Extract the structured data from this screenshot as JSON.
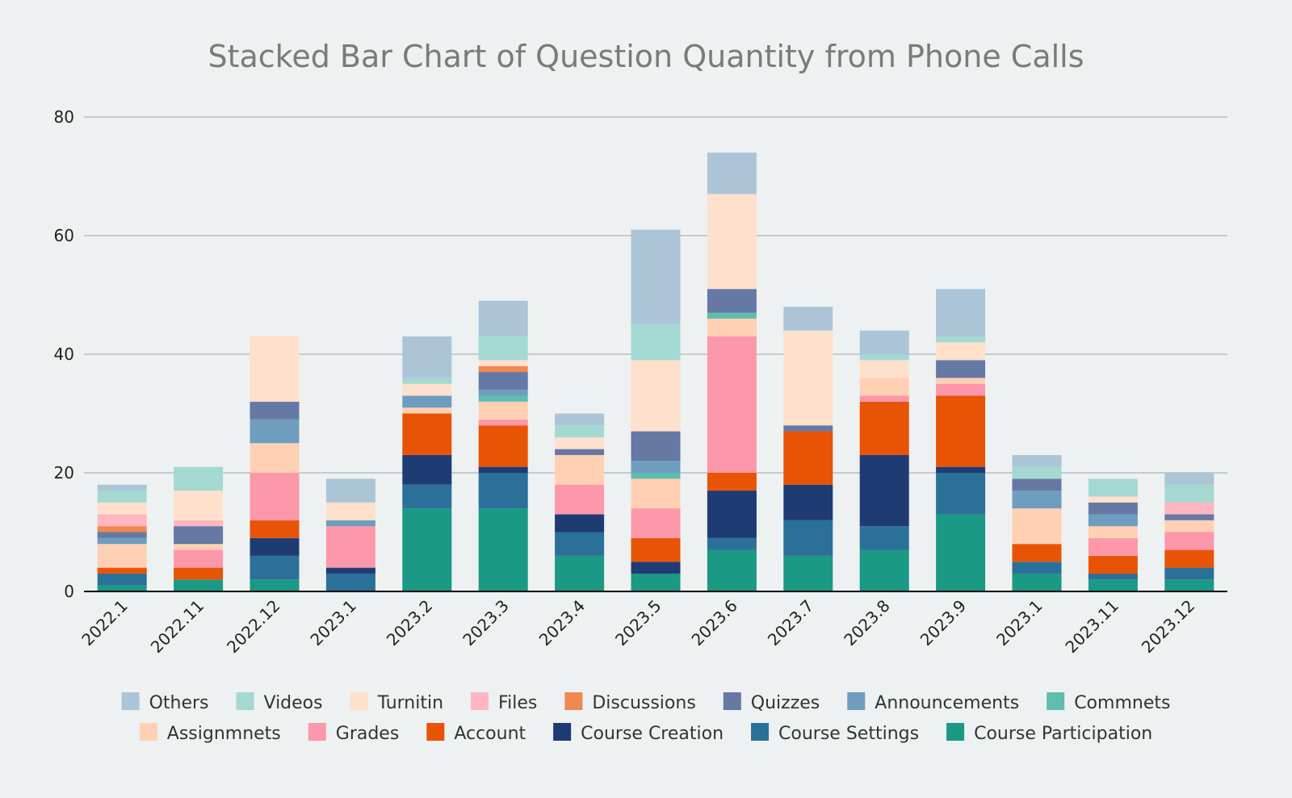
{
  "chart_data": {
    "type": "bar",
    "stacked": true,
    "title": "Stacked Bar Chart of Question Quantity from Phone Calls",
    "xlabel": "",
    "ylabel": "",
    "ylim": [
      0,
      80
    ],
    "yticks": [
      0,
      20,
      40,
      60,
      80
    ],
    "grid": true,
    "legend_position": "bottom",
    "categories": [
      "2022.1",
      "2022.11",
      "2022.12",
      "2023.1",
      "2023.2",
      "2023.3",
      "2023.4",
      "2023.5",
      "2023.6",
      "2023.7",
      "2023.8",
      "2023.9",
      "2023.1",
      "2023.11",
      "2023.12"
    ],
    "series": [
      {
        "name": "Course Participation",
        "color": "#1a9985",
        "values": [
          1,
          2,
          2,
          0,
          14,
          14,
          6,
          3,
          7,
          6,
          7,
          13,
          3,
          2,
          2
        ]
      },
      {
        "name": "Course Settings",
        "color": "#2b7098",
        "values": [
          2,
          0,
          4,
          3,
          4,
          6,
          4,
          0,
          2,
          6,
          4,
          7,
          2,
          1,
          2
        ]
      },
      {
        "name": "Course Creation",
        "color": "#1f3b74",
        "values": [
          0,
          0,
          3,
          1,
          5,
          1,
          3,
          2,
          8,
          6,
          12,
          1,
          0,
          0,
          0
        ]
      },
      {
        "name": "Account",
        "color": "#e85405",
        "values": [
          1,
          2,
          3,
          0,
          7,
          7,
          0,
          4,
          3,
          9,
          9,
          12,
          3,
          3,
          3
        ]
      },
      {
        "name": "Grades",
        "color": "#fd97aa",
        "values": [
          0,
          3,
          8,
          7,
          0,
          1,
          5,
          5,
          23,
          0,
          1,
          2,
          0,
          3,
          3
        ]
      },
      {
        "name": "Assignmnets",
        "color": "#ffd0b3",
        "values": [
          4,
          1,
          5,
          0,
          1,
          3,
          5,
          5,
          3,
          0,
          3,
          1,
          6,
          2,
          2
        ]
      },
      {
        "name": "Commnets",
        "color": "#5fbcae",
        "values": [
          0,
          0,
          0,
          0,
          0,
          1,
          0,
          1,
          1,
          0,
          0,
          0,
          0,
          0,
          0
        ]
      },
      {
        "name": "Announcements",
        "color": "#6e9dbf",
        "values": [
          1,
          0,
          4,
          1,
          2,
          1,
          0,
          2,
          0,
          0,
          0,
          0,
          3,
          2,
          0
        ]
      },
      {
        "name": "Quizzes",
        "color": "#6678a4",
        "values": [
          1,
          3,
          3,
          0,
          0,
          3,
          1,
          5,
          4,
          1,
          0,
          3,
          2,
          2,
          1
        ]
      },
      {
        "name": "Discussions",
        "color": "#f0884f",
        "values": [
          1,
          0,
          0,
          0,
          0,
          1,
          0,
          0,
          0,
          0,
          0,
          0,
          0,
          0,
          0
        ]
      },
      {
        "name": "Files",
        "color": "#ffb6c1",
        "values": [
          2,
          1,
          0,
          0,
          0,
          0,
          0,
          0,
          0,
          0,
          0,
          0,
          0,
          0,
          2
        ]
      },
      {
        "name": "Turnitin",
        "color": "#ffe0cc",
        "values": [
          2,
          5,
          11,
          3,
          2,
          1,
          2,
          12,
          16,
          16,
          3,
          3,
          0,
          1,
          0
        ]
      },
      {
        "name": "Videos",
        "color": "#a4d9d1",
        "values": [
          2,
          4,
          0,
          0,
          1,
          4,
          2,
          6,
          0,
          0,
          1,
          1,
          2,
          3,
          3
        ]
      },
      {
        "name": "Others",
        "color": "#abc5d7",
        "values": [
          1,
          0,
          0,
          4,
          7,
          6,
          2,
          16,
          7,
          4,
          4,
          8,
          2,
          0,
          2
        ]
      }
    ],
    "legend_order": [
      "Others",
      "Videos",
      "Turnitin",
      "Files",
      "Discussions",
      "Quizzes",
      "Announcements",
      "Commnets",
      "Assignmnets",
      "Grades",
      "Account",
      "Course Creation",
      "Course Settings",
      "Course Participation"
    ]
  }
}
